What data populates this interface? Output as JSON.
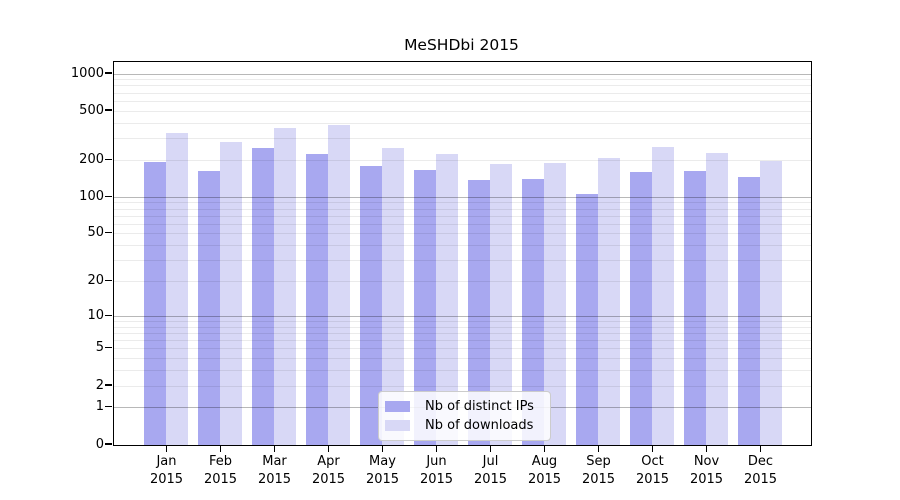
{
  "chart_data": {
    "type": "bar",
    "title": "MeSHDbi 2015",
    "y_scale": "log10(value+1), 0 at baseline",
    "y_ticks": [
      0,
      1,
      2,
      5,
      10,
      20,
      50,
      100,
      200,
      500,
      1000
    ],
    "ylim": [
      0,
      1250
    ],
    "grid": true,
    "legend_position": "bottom-center",
    "x_year_label": "2015",
    "categories": [
      "Jan",
      "Feb",
      "Mar",
      "Apr",
      "May",
      "Jun",
      "Jul",
      "Aug",
      "Sep",
      "Oct",
      "Nov",
      "Dec"
    ],
    "series": [
      {
        "name": "Nb of distinct IPs",
        "color": "#a8a8f0",
        "values": [
          195,
          165,
          250,
          225,
          180,
          168,
          138,
          140,
          107,
          160,
          165,
          145
        ]
      },
      {
        "name": "Nb of downloads",
        "color": "#d8d8f6",
        "values": [
          330,
          280,
          365,
          390,
          250,
          225,
          185,
          190,
          208,
          255,
          230,
          198
        ]
      }
    ]
  }
}
